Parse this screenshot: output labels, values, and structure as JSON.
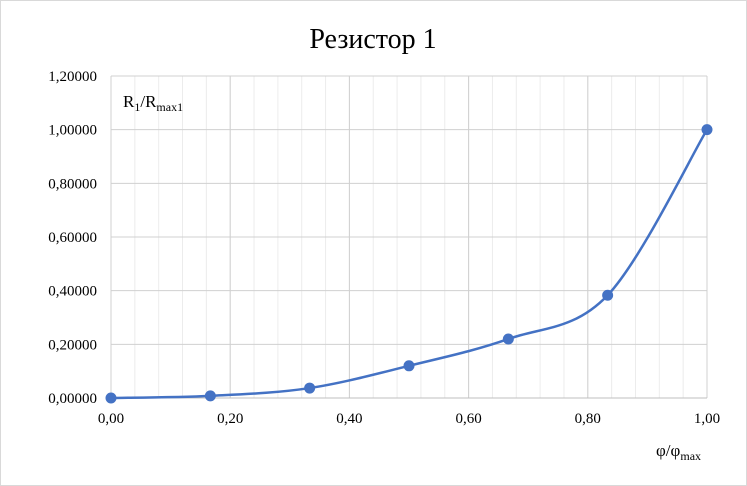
{
  "chart_data": {
    "type": "scatter",
    "title": "Резистор 1",
    "xlabel": {
      "main": "φ/φ",
      "sub": "max"
    },
    "ylabel": {
      "main": "R",
      "sub1": "1",
      "mid": "/R",
      "sub2": "max1"
    },
    "xlim": [
      0,
      1
    ],
    "ylim": [
      0,
      1.2
    ],
    "x_ticks": [
      0,
      0.2,
      0.4,
      0.6,
      0.8,
      1.0
    ],
    "x_tick_labels": [
      "0,00",
      "0,20",
      "0,40",
      "0,60",
      "0,80",
      "1,00"
    ],
    "y_ticks": [
      0,
      0.2,
      0.4,
      0.6,
      0.8,
      1.0,
      1.2
    ],
    "y_tick_labels": [
      "0,00000",
      "0,20000",
      "0,40000",
      "0,60000",
      "0,80000",
      "1,00000",
      "1,20000"
    ],
    "minor_x_step": 0.04,
    "grid": true,
    "smooth": true,
    "series": [
      {
        "color": "#4472c4",
        "x": [
          0,
          0.1667,
          0.3333,
          0.5,
          0.6667,
          0.8333,
          1.0
        ],
        "y": [
          0.0,
          0.008,
          0.037,
          0.12,
          0.22,
          0.383,
          1.0
        ]
      }
    ]
  }
}
